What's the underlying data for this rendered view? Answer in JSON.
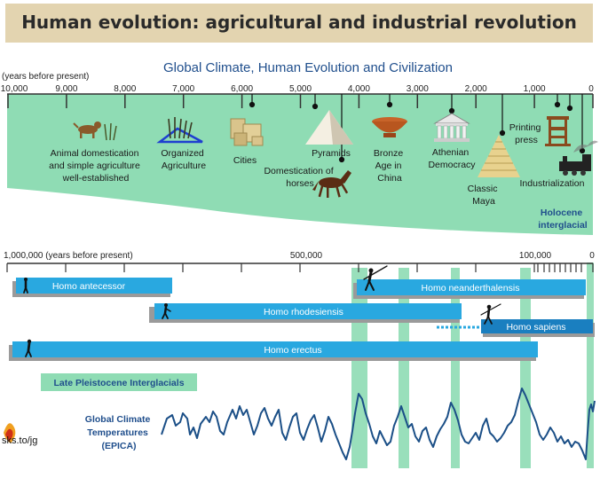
{
  "banner": {
    "title": "Human evolution: agricultural and industrial revolution"
  },
  "top": {
    "title": "Global Climate, Human Evolution and Civilization",
    "axis_label": "(years before present)",
    "ticks": [
      "10,000",
      "9,000",
      "8,000",
      "7,000",
      "6,000",
      "5,000",
      "4,000",
      "3,000",
      "2,000",
      "1,000",
      "0"
    ],
    "events": [
      {
        "key": "animal",
        "lines": [
          "Animal domestication",
          "and simple agriculture",
          "well-established"
        ]
      },
      {
        "key": "organized",
        "lines": [
          "Organized",
          "Agriculture"
        ]
      },
      {
        "key": "cities",
        "lines": [
          "Cities"
        ]
      },
      {
        "key": "pyramids",
        "lines": [
          "Pyramids"
        ]
      },
      {
        "key": "horses",
        "lines": [
          "Domestication of",
          "horses"
        ]
      },
      {
        "key": "bronze",
        "lines": [
          "Bronze",
          "Age in",
          "China"
        ]
      },
      {
        "key": "athenian",
        "lines": [
          "Athenian",
          "Democracy"
        ]
      },
      {
        "key": "maya",
        "lines": [
          "Classic",
          "Maya"
        ]
      },
      {
        "key": "printing",
        "lines": [
          "Printing",
          "press"
        ]
      },
      {
        "key": "industrial",
        "lines": [
          "Industrialization"
        ]
      }
    ],
    "holocene_lines": [
      "Holocene",
      "interglacial"
    ]
  },
  "bottom": {
    "axis_left": "1,000,000  (years before present)",
    "tick_500k": "500,000",
    "tick_100k": "100,000",
    "tick_0": "0",
    "species": {
      "antecessor": "Homo antecessor",
      "neanderthalensis": "Homo neanderthalensis",
      "rhodesiensis": "Homo rhodesiensis",
      "sapiens": "Homo sapiens",
      "erectus": "Homo erectus"
    },
    "interglacials_label": "Late Pleistocene Interglacials",
    "epica_lines": [
      "Global Climate",
      "Temperatures",
      "(EPICA)"
    ],
    "logo_text": "sks.to/jg"
  },
  "colors": {
    "mint": "#8fdcb4",
    "bar": "#29a8e0",
    "bar_shadow": "#9a9a9a",
    "curve": "#1b4f87",
    "navy": "#1a3f7a",
    "title_blue": "#1f4e8c"
  }
}
